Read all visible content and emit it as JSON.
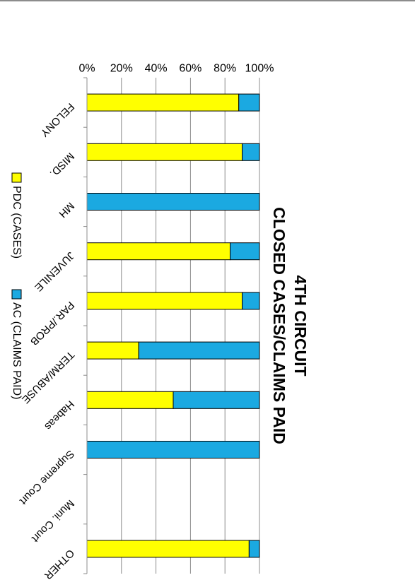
{
  "chart_data": {
    "type": "bar",
    "orientation": "horizontal-stacked-100-percent",
    "title_lines": [
      "4TH CIRCUIT",
      "CLOSED CASES/CLAIMS PAID"
    ],
    "categories": [
      "FELONY",
      "MISD.",
      "MH",
      "JUVENILE",
      "PAR./PROB",
      "TERM/ABUSE",
      "Habeas",
      "Supreme Court",
      "Muni. Court",
      "OTHER"
    ],
    "series": [
      {
        "name": "PDC (CASES)",
        "color": "#ffff00",
        "values": [
          88,
          90,
          0,
          83,
          90,
          30,
          50,
          0,
          0,
          94
        ]
      },
      {
        "name": "AC (CLAIMS PAID)",
        "color": "#1ba9e1",
        "values": [
          12,
          10,
          100,
          17,
          10,
          70,
          50,
          100,
          0,
          6
        ]
      }
    ],
    "ticks": [
      "0%",
      "20%",
      "40%",
      "60%",
      "80%",
      "100%"
    ],
    "xlim": [
      0,
      100
    ],
    "grid": true,
    "legend_position": "bottom"
  }
}
